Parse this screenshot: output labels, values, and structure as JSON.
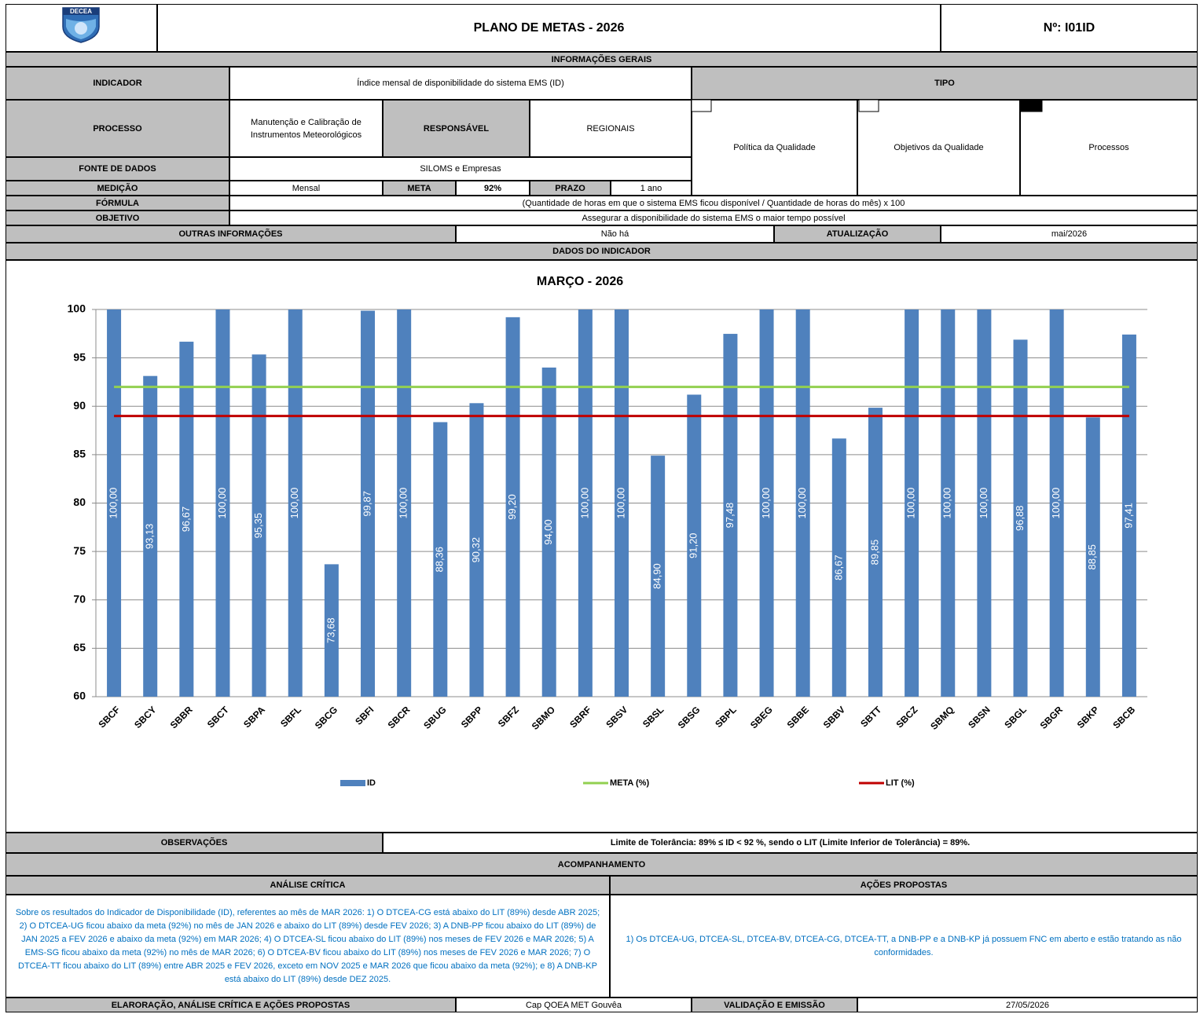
{
  "header": {
    "logo_text": "DECEA",
    "title": "PLANO DE METAS - 2026",
    "number": "Nº: I01ID"
  },
  "general": {
    "section": "INFORMAÇÕES GERAIS",
    "indicator_label": "INDICADOR",
    "indicator": "Índice mensal de disponibilidade do sistema EMS (ID)",
    "type_label": "TIPO",
    "type_options": [
      "Política da Qualidade",
      "Objetivos da Qualidade",
      "Processos"
    ],
    "type_selected": 2,
    "process_label": "PROCESSO",
    "process": "Manutenção e Calibração de Instrumentos Meteorológicos",
    "responsible_label": "RESPONSÁVEL",
    "responsible": "REGIONAIS",
    "source_label": "FONTE DE DADOS",
    "source": "SILOMS e Empresas",
    "measurement_label": "MEDIÇÃO",
    "measurement": "Mensal",
    "goal_label": "META",
    "goal": "92%",
    "deadline_label": "PRAZO",
    "deadline": "1 ano",
    "formula_label": "FÓRMULA",
    "formula": "(Quantidade de horas em que o sistema EMS ficou disponível / Quantidade de horas do mês)  x 100",
    "objective_label": "OBJETIVO",
    "objective": "Assegurar a disponibilidade do sistema EMS o maior tempo possível",
    "other_label": "OUTRAS INFORMAÇÕES",
    "other": "Não há",
    "update_label": "ATUALIZAÇÃO",
    "update": "mai/2026"
  },
  "data_section": "DADOS DO INDICADOR",
  "chart_data": {
    "type": "bar",
    "title": "MARÇO - 2026",
    "categories": [
      "SBCF",
      "SBCY",
      "SBBR",
      "SBCT",
      "SBPA",
      "SBFL",
      "SBCG",
      "SBFI",
      "SBCR",
      "SBUG",
      "SBPP",
      "SBFZ",
      "SBMO",
      "SBRF",
      "SBSV",
      "SBSL",
      "SBSG",
      "SBPL",
      "SBEG",
      "SBBE",
      "SBBV",
      "SBTT",
      "SBCZ",
      "SBMQ",
      "SBSN",
      "SBGL",
      "SBGR",
      "SBKP",
      "SBCB"
    ],
    "series": [
      {
        "name": "ID",
        "type": "bar",
        "color": "#4f81bd",
        "values": [
          100,
          93.13,
          96.67,
          100,
          95.35,
          100,
          73.68,
          99.87,
          100,
          88.36,
          90.32,
          99.2,
          94,
          100,
          100,
          84.9,
          91.2,
          97.48,
          100,
          100,
          86.67,
          89.85,
          100,
          100,
          100,
          96.88,
          100,
          88.85,
          97.41
        ],
        "value_labels": [
          "100,00",
          "93,13",
          "96,67",
          "100,00",
          "95,35",
          "100,00",
          "73,68",
          "99,87",
          "100,00",
          "88,36",
          "90,32",
          "99,20",
          "94,00",
          "100,00",
          "100,00",
          "84,90",
          "91,20",
          "97,48",
          "100,00",
          "100,00",
          "86,67",
          "89,85",
          "100,00",
          "100,00",
          "100,00",
          "96,88",
          "100,00",
          "88,85",
          "97,41"
        ]
      },
      {
        "name": "META (%)",
        "type": "line",
        "color": "#92d050",
        "values": [
          92,
          92,
          92,
          92,
          92,
          92,
          92,
          92,
          92,
          92,
          92,
          92,
          92,
          92,
          92,
          92,
          92,
          92,
          92,
          92,
          92,
          92,
          92,
          92,
          92,
          92,
          92,
          92,
          92
        ]
      },
      {
        "name": "LIT (%)",
        "type": "line",
        "color": "#c00000",
        "values": [
          89,
          89,
          89,
          89,
          89,
          89,
          89,
          89,
          89,
          89,
          89,
          89,
          89,
          89,
          89,
          89,
          89,
          89,
          89,
          89,
          89,
          89,
          89,
          89,
          89,
          89,
          89,
          89,
          89
        ]
      }
    ],
    "ylim": [
      60,
      100
    ],
    "yticks": [
      60,
      65,
      70,
      75,
      80,
      85,
      90,
      95,
      100
    ],
    "grid": true,
    "legend": "bottom"
  },
  "observations": {
    "label": "OBSERVAÇÕES",
    "text": "Limite de Tolerância: 89% ≤ ID < 92 %, sendo o LIT (Limite Inferior de Tolerância) = 89%."
  },
  "tracking": {
    "section": "ACOMPANHAMENTO",
    "analysis_label": "ANÁLISE CRÍTICA",
    "analysis": "Sobre os resultados do Indicador de Disponibilidade (ID), referentes ao mês de MAR 2026: 1) O DTCEA-CG está abaixo do LIT (89%) desde ABR 2025; 2) O DTCEA-UG ficou abaixo da meta (92%) no mês de JAN 2026 e abaixo do LIT (89%) desde FEV 2026; 3) A DNB-PP ficou abaixo do LIT (89%) de JAN 2025 a FEV 2026 e abaixo da meta (92%) em MAR 2026; 4) O DTCEA-SL ficou abaixo do LIT (89%) nos meses de FEV 2026 e MAR 2026; 5) A EMS-SG  ficou abaixo da meta (92%) no mês de MAR 2026; 6) O DTCEA-BV ficou abaixo do LIT (89%) nos meses de FEV 2026 e MAR 2026; 7) O DTCEA-TT ficou abaixo do LIT (89%) entre ABR 2025 e FEV 2026, exceto em NOV 2025 e MAR 2026 que ficou abaixo da meta (92%); e 8) A DNB-KP está abaixo do LIT (89%) desde DEZ 2025.",
    "actions_label": "AÇÕES PROPOSTAS",
    "actions": "1) Os DTCEA-UG, DTCEA-SL, DTCEA-BV, DTCEA-CG, DTCEA-TT, a DNB-PP e a DNB-KP  já possuem FNC em aberto e estão tratando as não conformidades."
  },
  "footer": {
    "prepared_label": "ELARORAÇÃO, ANÁLISE CRÍTICA E AÇÕES PROPOSTAS",
    "prepared_by": "Cap QOEA MET Gouvêa",
    "validation_label": "VALIDAÇÃO E EMISSÃO",
    "date": "27/05/2026"
  }
}
